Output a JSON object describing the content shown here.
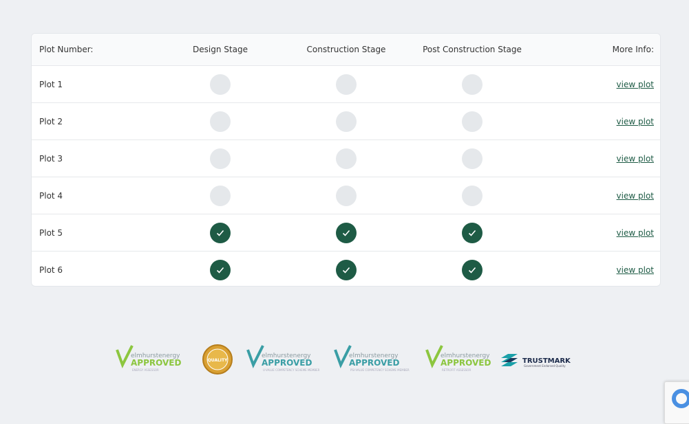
{
  "table": {
    "headers": [
      "Plot Number:",
      "Design Stage",
      "Construction Stage",
      "Post Construction Stage",
      "More Info:"
    ],
    "rows": [
      {
        "plot": "Plot 1",
        "stages": [
          false,
          false,
          false
        ],
        "link": "view plot"
      },
      {
        "plot": "Plot 2",
        "stages": [
          false,
          false,
          false
        ],
        "link": "view plot"
      },
      {
        "plot": "Plot 3",
        "stages": [
          false,
          false,
          false
        ],
        "link": "view plot"
      },
      {
        "plot": "Plot 4",
        "stages": [
          false,
          false,
          false
        ],
        "link": "view plot"
      },
      {
        "plot": "Plot 5",
        "stages": [
          true,
          true,
          true
        ],
        "link": "view plot"
      },
      {
        "plot": "Plot 6",
        "stages": [
          true,
          true,
          true
        ],
        "link": "view plot"
      }
    ]
  },
  "logos": [
    {
      "kind": "elmhurst",
      "brand": "elmhurstenergy",
      "badge": "APPROVED",
      "caption": "ENERGY ASSESSOR",
      "color": "#8cc63f"
    },
    {
      "kind": "quality",
      "badge": "QUALITY"
    },
    {
      "kind": "elmhurst",
      "brand": "elmhurstenergy",
      "badge": "APPROVED",
      "caption": "U-VALUE COMPETENCY SCHEME MEMBER",
      "color": "#3a9ea5"
    },
    {
      "kind": "elmhurst",
      "brand": "elmhurstenergy",
      "badge": "APPROVED",
      "caption": "PSI-VALUE COMPETENCY SCHEME MEMBER",
      "color": "#3a9ea5"
    },
    {
      "kind": "elmhurst",
      "brand": "elmhurstenergy",
      "badge": "APPROVED",
      "caption": "RETROFIT ASSESSOR",
      "color": "#8cc63f"
    },
    {
      "kind": "trustmark",
      "badge": "TRUSTMARK",
      "caption": "Government Endorsed Quality"
    }
  ]
}
